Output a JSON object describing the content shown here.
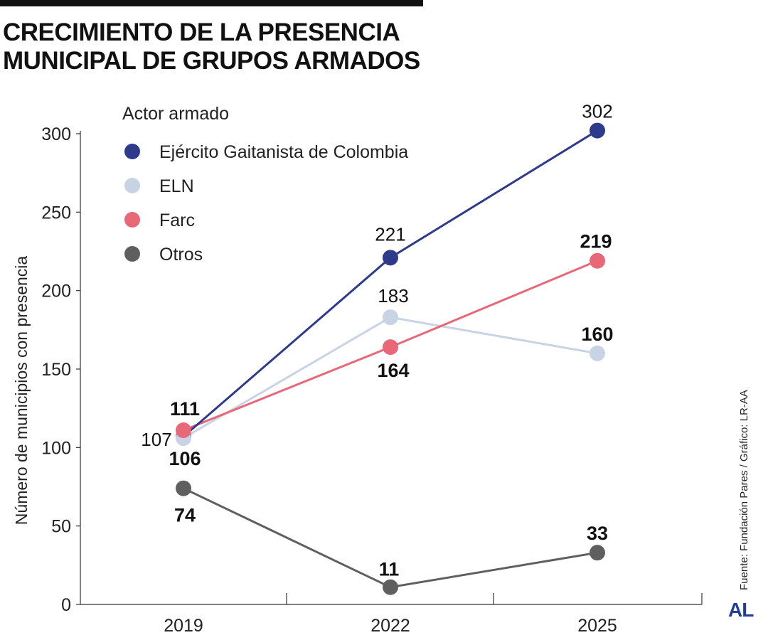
{
  "header": {
    "title_line1": "CRECIMIENTO DE LA PRESENCIA",
    "title_line2": "MUNICIPAL DE GRUPOS ARMADOS"
  },
  "footer": {
    "source": "Fuente: Fundación Pares / Gráfico: LR-AA",
    "logo": "AL"
  },
  "chart_data": {
    "type": "line",
    "title": "CRECIMIENTO DE LA PRESENCIA MUNICIPAL DE GRUPOS ARMADOS",
    "xlabel": "",
    "ylabel": "Número de municipios con presencia",
    "x": [
      "2019",
      "2022",
      "2025"
    ],
    "ylim": [
      0,
      300
    ],
    "yticks": [
      0,
      50,
      100,
      150,
      200,
      250,
      300
    ],
    "grid": false,
    "legend": {
      "title": "Actor armado",
      "placement": "top-left"
    },
    "series": [
      {
        "name": "Ejército Gaitanista de Colombia",
        "color": "#2e3a8c",
        "values": [
          107,
          221,
          302
        ],
        "labels": [
          "107",
          "221",
          "302"
        ],
        "bold": [
          false,
          false,
          false
        ]
      },
      {
        "name": "ELN",
        "color": "#c9d3e6",
        "values": [
          106,
          183,
          160
        ],
        "labels": [
          "106",
          "183",
          "160"
        ],
        "bold": [
          true,
          false,
          true
        ]
      },
      {
        "name": "Farc",
        "color": "#e86878",
        "values": [
          111,
          164,
          219
        ],
        "labels": [
          "111",
          "164",
          "219"
        ],
        "bold": [
          true,
          true,
          true
        ]
      },
      {
        "name": "Otros",
        "color": "#5f5f5f",
        "values": [
          74,
          11,
          33
        ],
        "labels": [
          "74",
          "11",
          "33"
        ],
        "bold": [
          true,
          true,
          true
        ]
      }
    ]
  }
}
